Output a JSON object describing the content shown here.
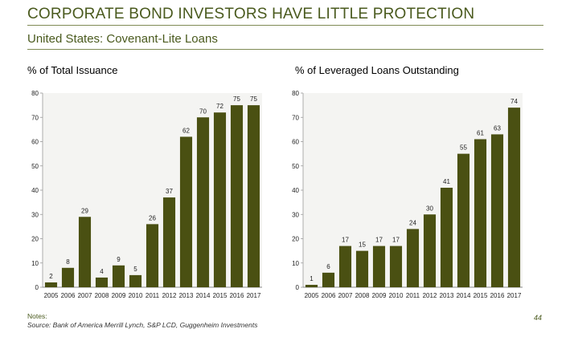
{
  "page": {
    "title": "CORPORATE BOND INVESTORS HAVE LITTLE PROTECTION",
    "subtitle": "United States: Covenant-Lite Loans",
    "notes_label": "Notes:",
    "source": "Source: Bank of America Merrill Lynch, S&P LCD, Guggenheim Investments",
    "page_number": "44"
  },
  "colors": {
    "bar": "#4a5012",
    "plot_bg": "#f4f4f2",
    "title": "#4a5a1e"
  },
  "chart_data": [
    {
      "type": "bar",
      "title": "% of Total Issuance",
      "categories": [
        "2005",
        "2006",
        "2007",
        "2008",
        "2009",
        "2010",
        "2011",
        "2012",
        "2013",
        "2014",
        "2015",
        "2016",
        "2017"
      ],
      "values": [
        2,
        8,
        29,
        4,
        9,
        5,
        26,
        37,
        62,
        70,
        72,
        75,
        75
      ],
      "yticks": [
        0,
        10,
        20,
        30,
        40,
        50,
        60,
        70,
        80
      ],
      "ylim": [
        0,
        80
      ],
      "xlabel": "",
      "ylabel": ""
    },
    {
      "type": "bar",
      "title": "% of Leveraged Loans Outstanding",
      "categories": [
        "2005",
        "2006",
        "2007",
        "2008",
        "2009",
        "2010",
        "2011",
        "2012",
        "2013",
        "2014",
        "2015",
        "2016",
        "2017"
      ],
      "values": [
        1,
        6,
        17,
        15,
        17,
        17,
        24,
        30,
        41,
        55,
        61,
        63,
        74
      ],
      "yticks": [
        0,
        10,
        20,
        30,
        40,
        50,
        60,
        70,
        80
      ],
      "ylim": [
        0,
        80
      ],
      "xlabel": "",
      "ylabel": ""
    }
  ]
}
